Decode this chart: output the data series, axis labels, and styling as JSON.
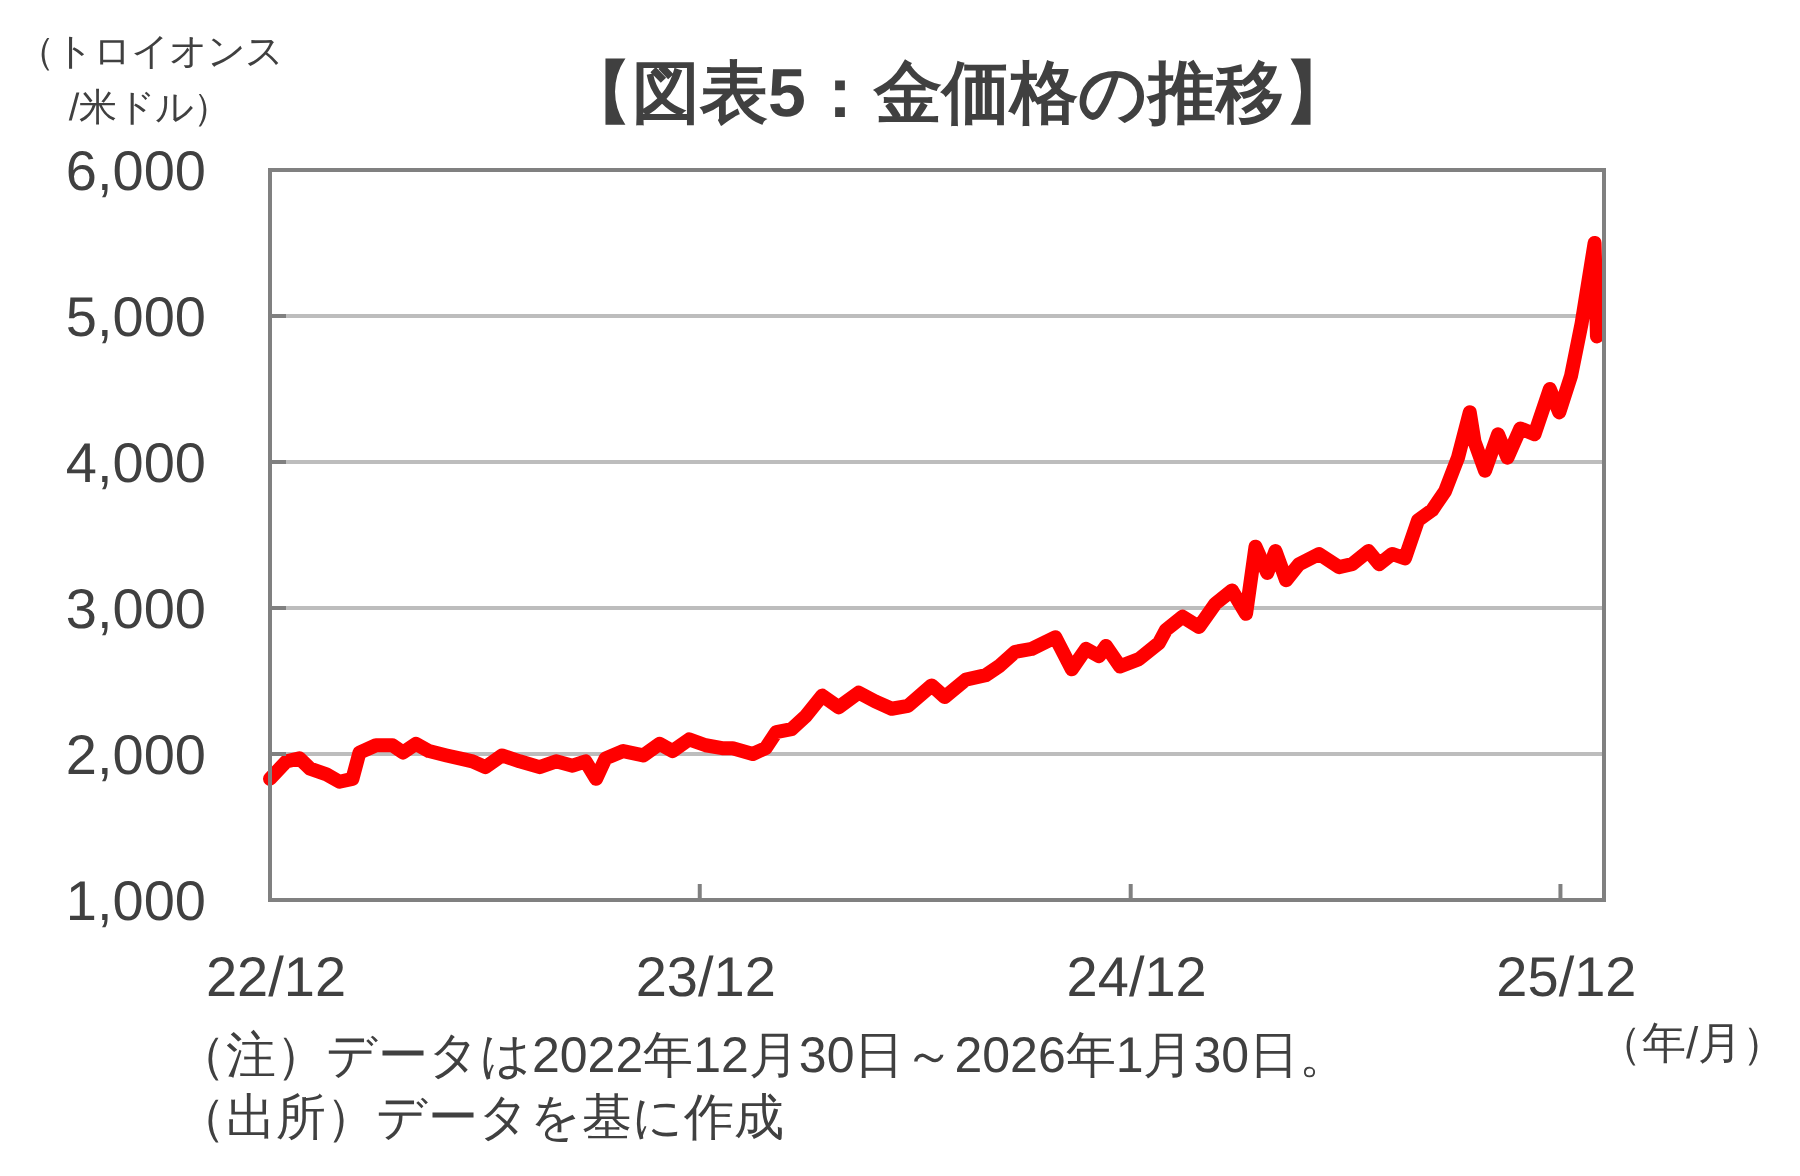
{
  "chart_data": {
    "type": "line",
    "title": "【図表5：金価格の推移】",
    "ylabel": "（トロイオンス\n/米ドル）",
    "xlabel": "（年/月）",
    "annotations": [
      "（注）データは2022年12月30日～2026年1月30日。",
      "（出所）データを基に作成"
    ],
    "x": [
      "2022-12-30",
      "2023-01-13",
      "2023-01-24",
      "2023-02-02",
      "2023-02-16",
      "2023-02-27",
      "2023-03-10",
      "2023-03-16",
      "2023-03-30",
      "2023-04-13",
      "2023-04-22",
      "2023-05-03",
      "2023-05-14",
      "2023-05-29",
      "2023-06-09",
      "2023-06-20",
      "2023-07-01",
      "2023-07-15",
      "2023-07-30",
      "2023-08-16",
      "2023-08-30",
      "2023-09-13",
      "2023-09-24",
      "2023-10-03",
      "2023-10-11",
      "2023-10-26",
      "2023-11-12",
      "2023-11-26",
      "2023-12-07",
      "2023-12-21",
      "2024-01-04",
      "2024-01-18",
      "2024-01-27",
      "2024-02-13",
      "2024-02-24",
      "2024-03-04",
      "2024-03-17",
      "2024-03-29",
      "2024-04-12",
      "2024-04-26",
      "2024-05-13",
      "2024-05-27",
      "2024-06-10",
      "2024-06-24",
      "2024-07-14",
      "2024-07-25",
      "2024-08-12",
      "2024-08-29",
      "2024-09-09",
      "2024-09-23",
      "2024-10-07",
      "2024-10-27",
      "2024-11-10",
      "2024-11-22",
      "2024-12-03",
      "2024-12-09",
      "2024-12-21",
      "2025-01-06",
      "2025-01-23",
      "2025-01-29",
      "2025-02-12",
      "2025-02-26",
      "2025-03-12",
      "2025-03-26",
      "2025-04-07",
      "2025-04-15",
      "2025-04-25",
      "2025-05-02",
      "2025-05-11",
      "2025-05-22",
      "2025-06-08",
      "2025-06-25",
      "2025-07-06",
      "2025-07-20",
      "2025-07-29",
      "2025-08-09",
      "2025-08-20",
      "2025-08-31",
      "2025-09-12",
      "2025-09-23",
      "2025-10-04",
      "2025-10-14",
      "2025-10-18",
      "2025-10-27",
      "2025-11-07",
      "2025-11-15",
      "2025-11-26",
      "2025-12-08",
      "2025-12-21",
      "2025-12-29",
      "2026-01-08",
      "2026-01-17",
      "2026-01-28",
      "2026-01-30"
    ],
    "series": [
      {
        "color": "#ff0000",
        "values": [
          1830,
          1950,
          1970,
          1900,
          1860,
          1810,
          1830,
          2010,
          2060,
          2060,
          2010,
          2070,
          2020,
          1990,
          1970,
          1950,
          1910,
          1990,
          1950,
          1910,
          1950,
          1920,
          1950,
          1830,
          1970,
          2020,
          1990,
          2070,
          2020,
          2100,
          2060,
          2040,
          2040,
          2000,
          2040,
          2150,
          2170,
          2260,
          2400,
          2320,
          2420,
          2360,
          2310,
          2330,
          2470,
          2390,
          2510,
          2540,
          2600,
          2700,
          2720,
          2800,
          2580,
          2720,
          2670,
          2740,
          2600,
          2650,
          2760,
          2850,
          2940,
          2870,
          3030,
          3120,
          2960,
          3420,
          3240,
          3390,
          3190,
          3300,
          3370,
          3280,
          3300,
          3390,
          3300,
          3370,
          3340,
          3600,
          3670,
          3800,
          4030,
          4340,
          4140,
          3940,
          4190,
          4030,
          4230,
          4190,
          4500,
          4340,
          4590,
          4950,
          5500,
          4860
        ]
      }
    ],
    "xlim": [
      "2022-12-30",
      "2026-02-05"
    ],
    "xticks": [
      {
        "value": "2022-12-30",
        "label": "22/12"
      },
      {
        "value": "2023-12-30",
        "label": "23/12"
      },
      {
        "value": "2024-12-30",
        "label": "24/12"
      },
      {
        "value": "2025-12-30",
        "label": "25/12"
      }
    ],
    "ylim": [
      1000,
      6000
    ],
    "yticks": [
      {
        "value": 1000,
        "label": "1,000"
      },
      {
        "value": 2000,
        "label": "2,000"
      },
      {
        "value": 3000,
        "label": "3,000"
      },
      {
        "value": 4000,
        "label": "4,000"
      },
      {
        "value": 5000,
        "label": "5,000"
      },
      {
        "value": 6000,
        "label": "6,000"
      }
    ],
    "grid": "y"
  }
}
